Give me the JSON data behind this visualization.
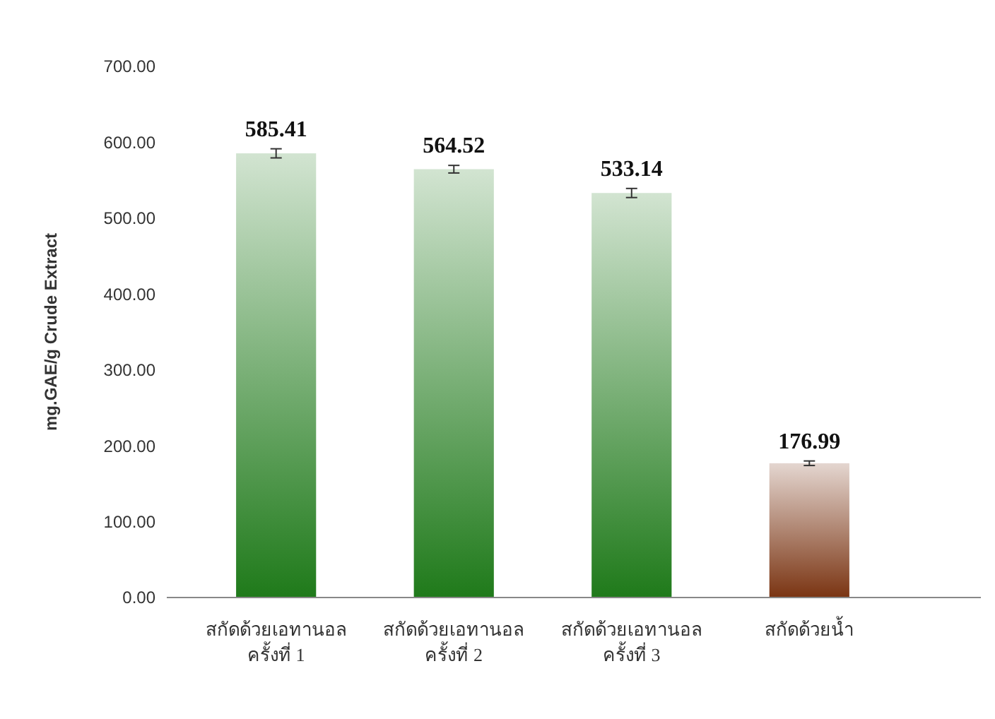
{
  "chart_data": {
    "type": "bar",
    "ylabel": "mg.GAE/g Crude Extract",
    "categories": [
      "สกัดด้วยเอทานอล\nครั้งที่ 1",
      "สกัดด้วยเอทานอล\nครั้งที่ 2",
      "สกัดด้วยเอทานอล\nครั้งที่ 3",
      "สกัดด้วยน้ำ"
    ],
    "values": [
      585.41,
      564.52,
      533.14,
      176.99
    ],
    "errors": [
      6,
      5,
      6,
      3
    ],
    "colors": [
      "#1f7a1a",
      "#1f7a1a",
      "#1f7a1a",
      "#7a3412"
    ],
    "ylim": [
      0,
      700
    ],
    "yticks": [
      {
        "value": 0,
        "label": "0.00"
      },
      {
        "value": 100,
        "label": "100.00"
      },
      {
        "value": 200,
        "label": "200.00"
      },
      {
        "value": 300,
        "label": "300.00"
      },
      {
        "value": 400,
        "label": "400.00"
      },
      {
        "value": 500,
        "label": "500.00"
      },
      {
        "value": 600,
        "label": "600.00"
      },
      {
        "value": 700,
        "label": "700.00"
      }
    ],
    "data_labels": true,
    "grid": false
  }
}
